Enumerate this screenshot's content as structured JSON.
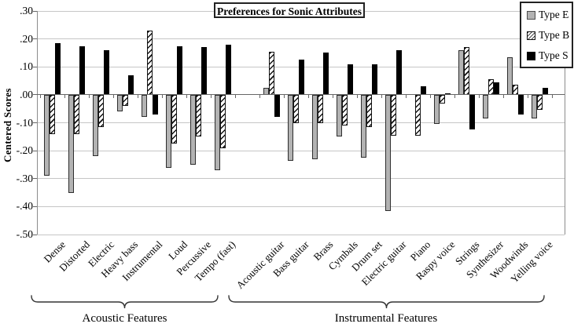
{
  "chart_data": {
    "type": "bar",
    "title": "Preferences for Sonic Attributes",
    "ylabel": "Centered Scores",
    "ylim": [
      -0.5,
      0.3
    ],
    "ytick_step": 0.1,
    "ytick_labels": [
      ".30",
      ".20",
      ".10",
      ".00",
      "-.10",
      "-.20",
      "-.30",
      "-.40",
      "-.50"
    ],
    "grid": "horizontal-gridlines-on",
    "legend_position": "top-right",
    "series_names": [
      "Type E",
      "Type B",
      "Type S"
    ],
    "sections": [
      {
        "label": "Acoustic Features",
        "categories": [
          "Dense",
          "Distorted",
          "Electric",
          "Heavy bass",
          "Instrumental",
          "Loud",
          "Percussive",
          "Tempo (fast)"
        ],
        "series": [
          {
            "name": "Type E",
            "style": "gray",
            "values": [
              -0.29,
              -0.35,
              -0.22,
              -0.06,
              -0.08,
              -0.26,
              -0.25,
              -0.27
            ]
          },
          {
            "name": "Type B",
            "style": "hatched",
            "values": [
              -0.14,
              -0.14,
              -0.115,
              -0.04,
              0.23,
              -0.175,
              -0.15,
              -0.19
            ]
          },
          {
            "name": "Type S",
            "style": "black",
            "values": [
              0.185,
              0.175,
              0.16,
              0.07,
              -0.07,
              0.175,
              0.17,
              0.18
            ]
          }
        ]
      },
      {
        "label": "Instrumental Features",
        "categories": [
          "Acoustic guitar",
          "Bass guitar",
          "Brass",
          "Cymbals",
          "Drum set",
          "Electric guitar",
          "Piano",
          "Raspy voice",
          "Strings",
          "Synthesizer",
          "Woodwinds",
          "Yelling voice"
        ],
        "series": [
          {
            "name": "Type E",
            "style": "gray",
            "values": [
              0.025,
              -0.235,
              -0.23,
              -0.15,
              -0.225,
              -0.415,
              0,
              -0.105,
              0.16,
              -0.085,
              0.135,
              -0.085
            ]
          },
          {
            "name": "Type B",
            "style": "hatched",
            "values": [
              0.155,
              -0.1,
              -0.1,
              -0.11,
              -0.115,
              -0.145,
              -0.145,
              -0.03,
              0.17,
              0.055,
              0.035,
              -0.055
            ]
          },
          {
            "name": "Type S",
            "style": "black",
            "values": [
              -0.08,
              0.125,
              0.15,
              0.11,
              0.11,
              0.16,
              0.03,
              0.005,
              -0.125,
              0.045,
              -0.07,
              0.025
            ]
          }
        ]
      }
    ],
    "colors": {
      "type_e": "#b3b3b3",
      "type_b_hatch": "#111111",
      "type_s": "#000000",
      "gridline": "#c6c6c6",
      "axis": "#666666"
    }
  },
  "legend": {
    "items": [
      {
        "label": "Type E",
        "style": "gray"
      },
      {
        "label": "Type B",
        "style": "hatched"
      },
      {
        "label": "Type S",
        "style": "black"
      }
    ]
  }
}
